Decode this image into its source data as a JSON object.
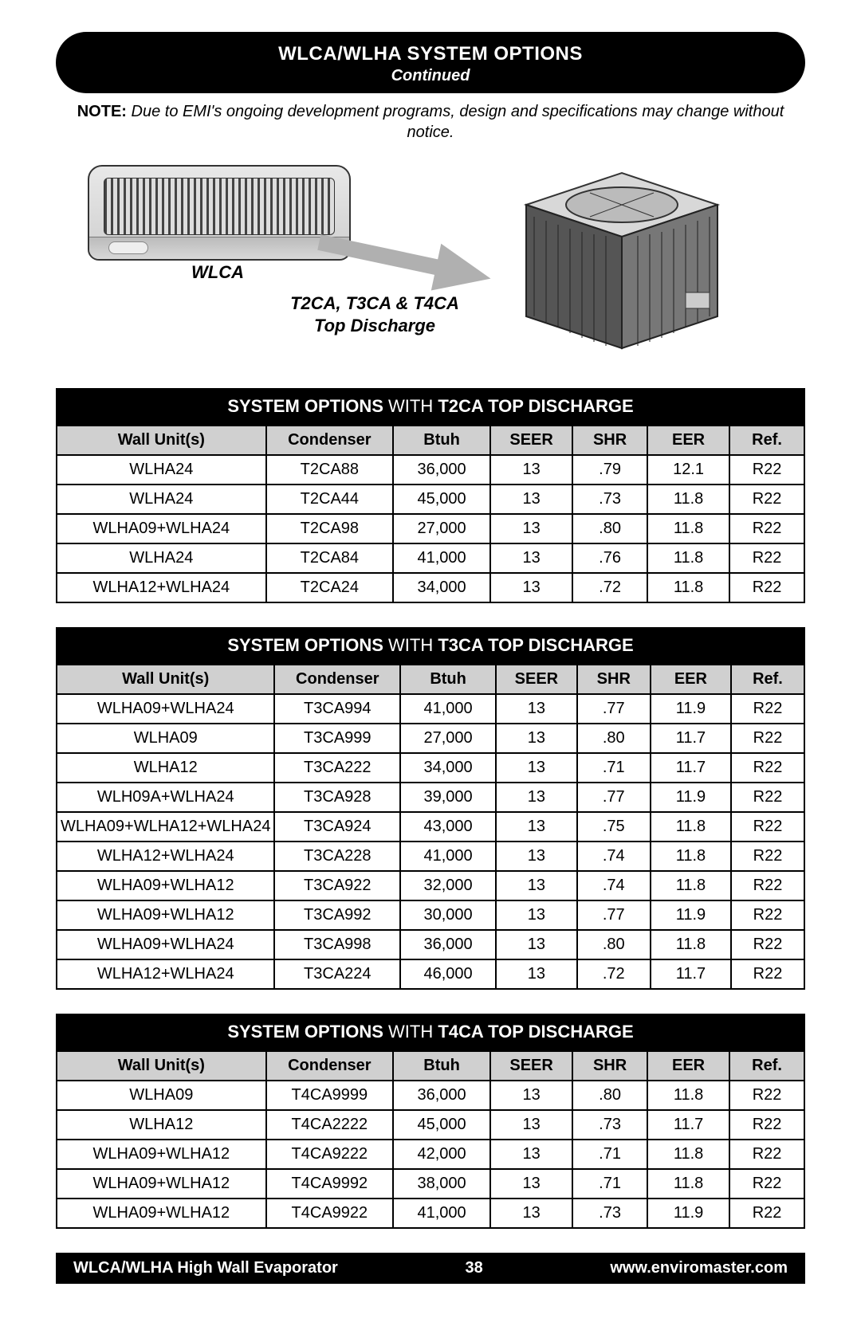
{
  "header": {
    "title": "WLCA/WLHA SYSTEM OPTIONS",
    "subtitle": "Continued"
  },
  "note": {
    "label": "NOTE:",
    "body": "Due to EMI's ongoing development programs, design and specifications may change without notice."
  },
  "diagram": {
    "wlca_label": "WLCA",
    "cond_label_line1": "T2CA, T3CA & T4CA",
    "cond_label_line2": "Top Discharge",
    "arrow_color": "#b0b0b0"
  },
  "columns": [
    "Wall Unit(s)",
    "Condenser",
    "Btuh",
    "SEER",
    "SHR",
    "EER",
    "Ref."
  ],
  "col_widths": [
    "28%",
    "17%",
    "13%",
    "11%",
    "10%",
    "11%",
    "10%"
  ],
  "tables": [
    {
      "title_prefix": "SYSTEM OPTIONS",
      "title_mid": " WITH ",
      "title_suffix": "T2CA TOP DISCHARGE",
      "rows": [
        [
          "WLHA24",
          "T2CA88",
          "36,000",
          "13",
          ".79",
          "12.1",
          "R22"
        ],
        [
          "WLHA24",
          "T2CA44",
          "45,000",
          "13",
          ".73",
          "11.8",
          "R22"
        ],
        [
          "WLHA09+WLHA24",
          "T2CA98",
          "27,000",
          "13",
          ".80",
          "11.8",
          "R22"
        ],
        [
          "WLHA24",
          "T2CA84",
          "41,000",
          "13",
          ".76",
          "11.8",
          "R22"
        ],
        [
          "WLHA12+WLHA24",
          "T2CA24",
          "34,000",
          "13",
          ".72",
          "11.8",
          "R22"
        ]
      ]
    },
    {
      "title_prefix": "SYSTEM OPTIONS",
      "title_mid": " WITH ",
      "title_suffix": "T3CA TOP DISCHARGE",
      "rows": [
        [
          "WLHA09+WLHA24",
          "T3CA994",
          "41,000",
          "13",
          ".77",
          "11.9",
          "R22"
        ],
        [
          "WLHA09",
          "T3CA999",
          "27,000",
          "13",
          ".80",
          "11.7",
          "R22"
        ],
        [
          "WLHA12",
          "T3CA222",
          "34,000",
          "13",
          ".71",
          "11.7",
          "R22"
        ],
        [
          "WLH09A+WLHA24",
          "T3CA928",
          "39,000",
          "13",
          ".77",
          "11.9",
          "R22"
        ],
        [
          "WLHA09+WLHA12+WLHA24",
          "T3CA924",
          "43,000",
          "13",
          ".75",
          "11.8",
          "R22"
        ],
        [
          "WLHA12+WLHA24",
          "T3CA228",
          "41,000",
          "13",
          ".74",
          "11.8",
          "R22"
        ],
        [
          "WLHA09+WLHA12",
          "T3CA922",
          "32,000",
          "13",
          ".74",
          "11.8",
          "R22"
        ],
        [
          "WLHA09+WLHA12",
          "T3CA992",
          "30,000",
          "13",
          ".77",
          "11.9",
          "R22"
        ],
        [
          "WLHA09+WLHA24",
          "T3CA998",
          "36,000",
          "13",
          ".80",
          "11.8",
          "R22"
        ],
        [
          "WLHA12+WLHA24",
          "T3CA224",
          "46,000",
          "13",
          ".72",
          "11.7",
          "R22"
        ]
      ]
    },
    {
      "title_prefix": "SYSTEM OPTIONS",
      "title_mid": " WITH ",
      "title_suffix": "T4CA TOP DISCHARGE",
      "rows": [
        [
          "WLHA09",
          "T4CA9999",
          "36,000",
          "13",
          ".80",
          "11.8",
          "R22"
        ],
        [
          "WLHA12",
          "T4CA2222",
          "45,000",
          "13",
          ".73",
          "11.7",
          "R22"
        ],
        [
          "WLHA09+WLHA12",
          "T4CA9222",
          "42,000",
          "13",
          ".71",
          "11.8",
          "R22"
        ],
        [
          "WLHA09+WLHA12",
          "T4CA9992",
          "38,000",
          "13",
          ".71",
          "11.8",
          "R22"
        ],
        [
          "WLHA09+WLHA12",
          "T4CA9922",
          "41,000",
          "13",
          ".73",
          "11.9",
          "R22"
        ]
      ]
    }
  ],
  "footer": {
    "left": "WLCA/WLHA High Wall Evaporator",
    "page": "38",
    "right": "www.enviromaster.com"
  },
  "style": {
    "header_bg": "#000000",
    "header_fg": "#ffffff",
    "th_bg": "#d0d0d0",
    "border_color": "#000000",
    "body_font_size": 20
  }
}
